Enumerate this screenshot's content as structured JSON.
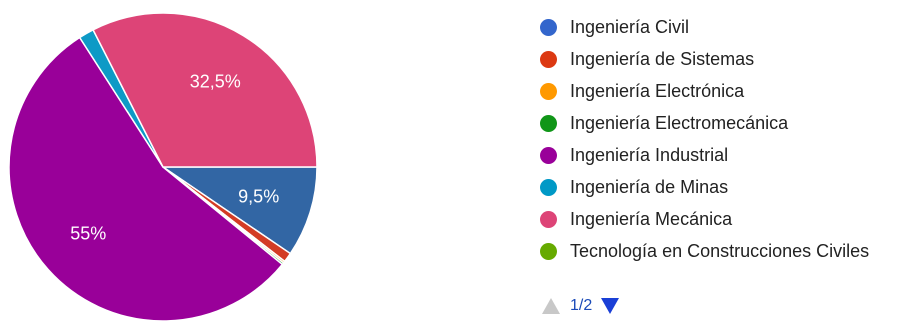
{
  "chart_data": {
    "type": "pie",
    "title": "",
    "start_angle_deg": 0,
    "slices": [
      {
        "label": "Ingeniería Civil",
        "value": 9.5,
        "color": "#3266a4",
        "display_label": "9,5%"
      },
      {
        "label": "Ingeniería de Sistemas",
        "value": 1.0,
        "color": "#d33c25",
        "display_label": ""
      },
      {
        "label": "Ingeniería Electrónica",
        "value": 0.2,
        "color": "#f79e1d",
        "display_label": ""
      },
      {
        "label": "Ingeniería Electromecánica",
        "value": 0.2,
        "color": "#1a9a3c",
        "display_label": ""
      },
      {
        "label": "Ingeniería Industrial",
        "value": 55.0,
        "color": "#990099",
        "display_label": "55%"
      },
      {
        "label": "Ingeniería de Minas",
        "value": 1.6,
        "color": "#0d9ac6",
        "display_label": ""
      },
      {
        "label": "Ingeniería Mecánica",
        "value": 32.5,
        "color": "#dd4477",
        "display_label": "32,5%"
      }
    ],
    "legend": {
      "position": "right",
      "items": [
        {
          "label": "Ingeniería Civil",
          "color": "#3366cc"
        },
        {
          "label": "Ingeniería de Sistemas",
          "color": "#dc3912"
        },
        {
          "label": "Ingeniería Electrónica",
          "color": "#ff9900"
        },
        {
          "label": "Ingeniería Electromecánica",
          "color": "#109618"
        },
        {
          "label": "Ingeniería Industrial",
          "color": "#990099"
        },
        {
          "label": "Ingeniería de Minas",
          "color": "#0099c6"
        },
        {
          "label": "Ingeniería Mecánica",
          "color": "#dd4477"
        },
        {
          "label": "Tecnología en Construcciones Civiles",
          "color": "#66aa00"
        }
      ]
    }
  },
  "pager": {
    "text": "1/2"
  }
}
